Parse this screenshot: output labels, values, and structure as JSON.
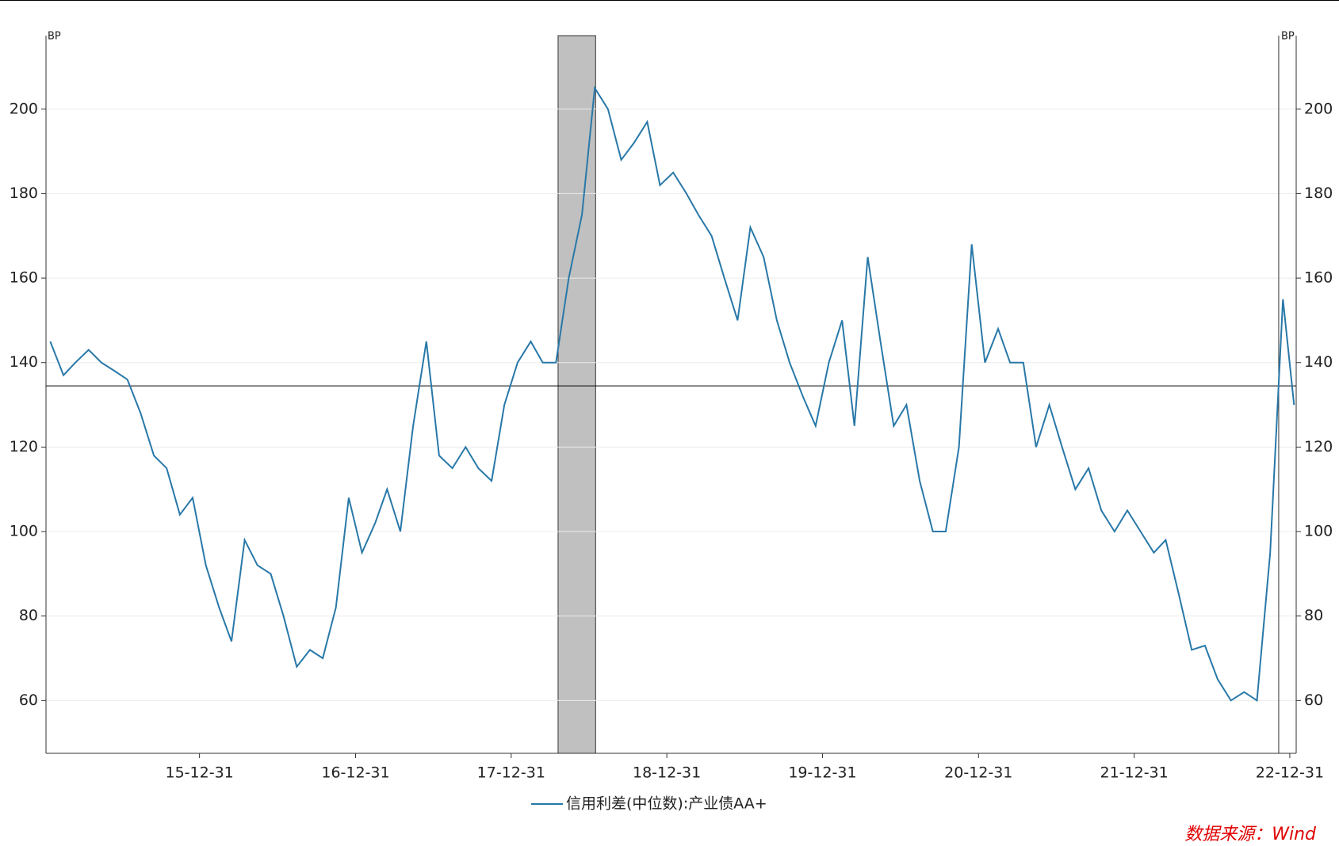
{
  "chart_data": {
    "type": "line",
    "y_unit": "BP",
    "source": "数据来源：Wind",
    "xlim": [
      "15-01-05",
      "23-01-15"
    ],
    "xticks": [
      "15-12-31",
      "16-12-31",
      "17-12-31",
      "18-12-31",
      "19-12-31",
      "20-12-31",
      "21-12-31",
      "22-12-31"
    ],
    "ylim": [
      47.5,
      217.4
    ],
    "yticks": [
      60,
      80,
      100,
      120,
      140,
      160,
      180,
      200
    ],
    "y2lim": [
      47.5,
      217.4
    ],
    "y2ticks": [
      60,
      80,
      100,
      120,
      140,
      160,
      180,
      200
    ],
    "grid": true,
    "hline": 134.5,
    "shade": [
      "18-04-20",
      "18-07-17"
    ],
    "vline": "22-12-05",
    "x": [
      "15-01-15",
      "15-02-15",
      "15-03-15",
      "15-04-15",
      "15-05-15",
      "15-06-15",
      "15-07-15",
      "15-08-15",
      "15-09-15",
      "15-10-15",
      "15-11-15",
      "15-12-15",
      "16-01-15",
      "16-02-15",
      "16-03-15",
      "16-04-15",
      "16-05-15",
      "16-06-15",
      "16-07-15",
      "16-08-15",
      "16-09-15",
      "16-10-15",
      "16-11-15",
      "16-12-15",
      "17-01-15",
      "17-02-15",
      "17-03-15",
      "17-04-15",
      "17-05-15",
      "17-06-15",
      "17-07-15",
      "17-08-15",
      "17-09-15",
      "17-10-15",
      "17-11-15",
      "17-12-15",
      "18-01-15",
      "18-02-15",
      "18-03-15",
      "18-04-15",
      "18-05-15",
      "18-06-15",
      "18-07-15",
      "18-08-15",
      "18-09-15",
      "18-10-15",
      "18-11-15",
      "18-12-15",
      "19-01-15",
      "19-02-15",
      "19-03-15",
      "19-04-15",
      "19-05-15",
      "19-06-15",
      "19-07-15",
      "19-08-15",
      "19-09-15",
      "19-10-15",
      "19-11-15",
      "19-12-15",
      "20-01-15",
      "20-02-15",
      "20-03-15",
      "20-04-15",
      "20-05-15",
      "20-06-15",
      "20-07-15",
      "20-08-15",
      "20-09-15",
      "20-10-15",
      "20-11-15",
      "20-12-15",
      "21-01-15",
      "21-02-15",
      "21-03-15",
      "21-04-15",
      "21-05-15",
      "21-06-15",
      "21-07-15",
      "21-08-15",
      "21-09-15",
      "21-10-15",
      "21-11-15",
      "21-12-15",
      "22-01-15",
      "22-02-15",
      "22-03-15",
      "22-04-15",
      "22-05-15",
      "22-06-15",
      "22-07-15",
      "22-08-15",
      "22-09-15",
      "22-10-15",
      "22-11-15",
      "22-12-15",
      "23-01-10"
    ],
    "series": [
      {
        "name": "信用利差(中位数):产业债AA+",
        "color": "#2878a8",
        "values": [
          145,
          137,
          140,
          143,
          140,
          138,
          136,
          128,
          118,
          115,
          104,
          108,
          92,
          82,
          74,
          98,
          92,
          90,
          80,
          68,
          72,
          70,
          82,
          108,
          95,
          102,
          110,
          100,
          125,
          145,
          118,
          115,
          120,
          115,
          112,
          130,
          140,
          145,
          140,
          140,
          160,
          175,
          205,
          200,
          188,
          192,
          197,
          182,
          185,
          180,
          175,
          170,
          160,
          150,
          172,
          165,
          150,
          140,
          132,
          125,
          140,
          150,
          125,
          165,
          145,
          125,
          130,
          112,
          100,
          100,
          120,
          168,
          140,
          148,
          140,
          140,
          120,
          130,
          120,
          110,
          115,
          105,
          100,
          105,
          100,
          95,
          98,
          85,
          72,
          73,
          65,
          60,
          62,
          60,
          95,
          155,
          130
        ]
      }
    ]
  }
}
